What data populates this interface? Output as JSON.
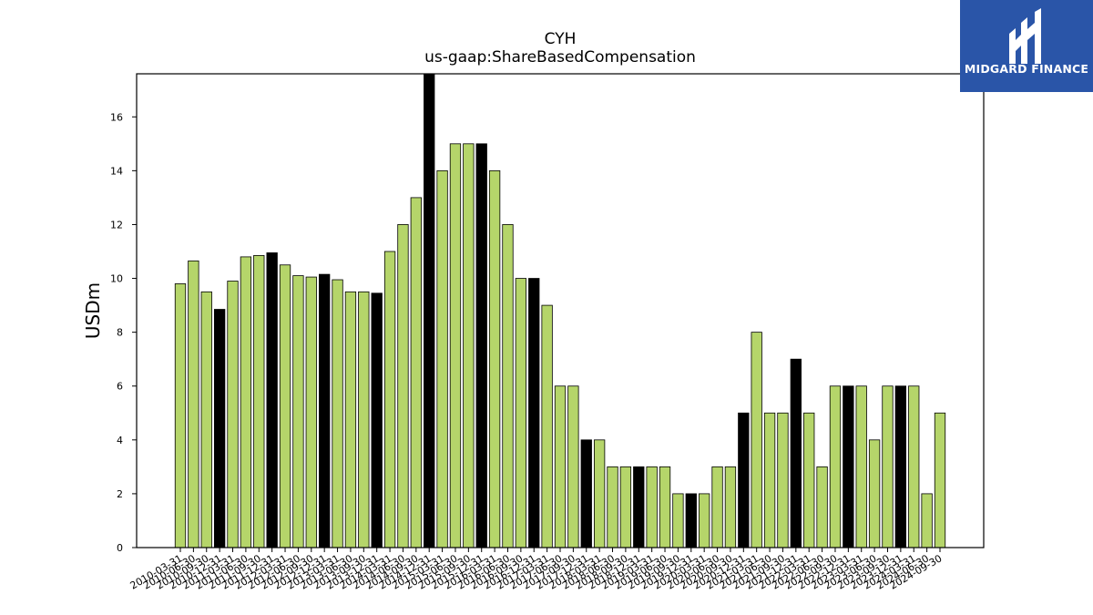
{
  "chart_data": {
    "type": "bar",
    "title": "CYH",
    "subtitle": "us-gaap:ShareBasedCompensation",
    "xlabel": "",
    "ylabel": "USDm",
    "ylim": [
      0,
      17.6
    ],
    "yticks": [
      0,
      2,
      4,
      6,
      8,
      10,
      12,
      14,
      16
    ],
    "grid": false,
    "colors": {
      "quarter": "#b5d56a",
      "annual": "#000000",
      "edge": "#000000"
    },
    "categories": [
      "2010-03-31",
      "2010-06-30",
      "2010-09-30",
      "2010-12-31",
      "2011-03-31",
      "2011-06-30",
      "2011-09-30",
      "2011-12-31",
      "2012-03-31",
      "2012-06-30",
      "2012-09-30",
      "2012-12-31",
      "2013-03-31",
      "2013-06-30",
      "2013-09-30",
      "2013-12-31",
      "2014-03-31",
      "2014-06-30",
      "2014-09-30",
      "2014-12-31",
      "2015-03-31",
      "2015-06-30",
      "2015-09-30",
      "2015-12-31",
      "2016-03-31",
      "2016-06-30",
      "2016-09-30",
      "2016-12-31",
      "2017-03-31",
      "2017-06-30",
      "2017-09-30",
      "2017-12-31",
      "2018-03-31",
      "2018-06-30",
      "2018-09-30",
      "2018-12-31",
      "2019-03-31",
      "2019-06-30",
      "2019-09-30",
      "2019-12-31",
      "2020-03-31",
      "2020-06-30",
      "2020-09-30",
      "2020-12-31",
      "2021-03-31",
      "2021-06-30",
      "2021-09-30",
      "2021-12-31",
      "2022-03-31",
      "2022-06-30",
      "2022-09-30",
      "2022-12-31",
      "2023-03-31",
      "2023-06-30",
      "2023-09-30",
      "2023-12-31",
      "2024-03-31",
      "2024-06-30",
      "2024-09-30"
    ],
    "values": [
      9.8,
      10.65,
      9.5,
      8.85,
      9.9,
      10.8,
      10.85,
      10.95,
      10.5,
      10.1,
      10.05,
      10.15,
      9.95,
      9.5,
      9.5,
      9.45,
      11,
      12,
      13,
      17.6,
      14,
      15,
      15,
      15,
      14,
      12,
      10,
      10,
      9,
      6,
      6,
      4,
      4,
      3,
      3,
      3,
      3,
      3,
      2,
      2,
      2,
      3,
      3,
      5,
      8,
      5,
      5,
      7,
      5,
      3,
      6,
      6,
      6,
      4,
      6,
      6,
      6,
      2,
      5
    ],
    "annual_flags": [
      false,
      false,
      false,
      true,
      false,
      false,
      false,
      true,
      false,
      false,
      false,
      true,
      false,
      false,
      false,
      true,
      false,
      false,
      false,
      true,
      false,
      false,
      false,
      true,
      false,
      false,
      false,
      true,
      false,
      false,
      false,
      true,
      false,
      false,
      false,
      true,
      false,
      false,
      false,
      true,
      false,
      false,
      false,
      true,
      false,
      false,
      false,
      true,
      false,
      false,
      false,
      true,
      false,
      false,
      false,
      true,
      false,
      false,
      false
    ]
  },
  "logo": {
    "text": "MIDGARD FINANCE",
    "bg_color": "#2a55a8"
  }
}
